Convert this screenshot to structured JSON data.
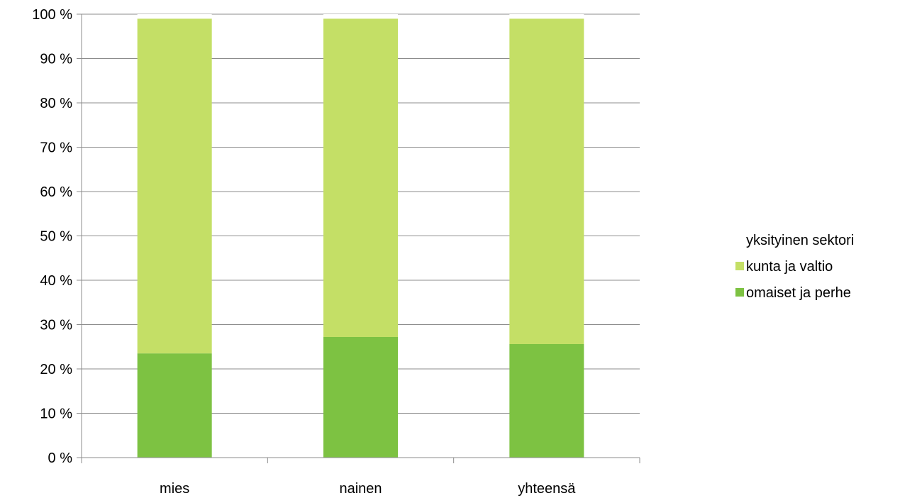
{
  "chart_data": {
    "type": "bar",
    "stacked": true,
    "orientation": "vertical",
    "categories": [
      "mies",
      "nainen",
      "yhteensä"
    ],
    "series": [
      {
        "name": "omaiset ja perhe",
        "values": [
          23.5,
          27.2,
          25.6
        ],
        "color": "#7dc242"
      },
      {
        "name": "kunta ja valtio",
        "values": [
          75.5,
          71.8,
          73.4
        ],
        "color": "#c4df66"
      },
      {
        "name": "yksityinen sektori",
        "values": [
          1.0,
          1.0,
          1.0
        ],
        "color": "#ffffff"
      }
    ],
    "ylim": [
      0,
      100
    ],
    "yticks": [
      0,
      10,
      20,
      30,
      40,
      50,
      60,
      70,
      80,
      90,
      100
    ],
    "ytick_labels": [
      "0 %",
      "10 %",
      "20 %",
      "30 %",
      "40 %",
      "50 %",
      "60 %",
      "70 %",
      "80 %",
      "90 %",
      "100 %"
    ],
    "title": "",
    "xlabel": "",
    "ylabel": "",
    "grid": "horizontal",
    "legend_position": "right",
    "legend_order": [
      "yksityinen sektori",
      "kunta ja valtio",
      "omaiset ja perhe"
    ]
  },
  "colors": {
    "axis": "#8c8c8c",
    "grid": "#8c8c8c",
    "text": "#000000"
  }
}
